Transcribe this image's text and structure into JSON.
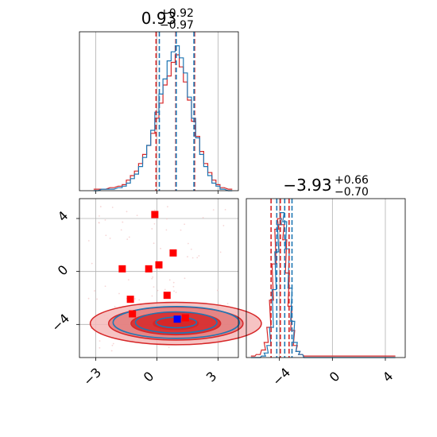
{
  "colors": {
    "red": "#d62728",
    "blue": "#1f77b4",
    "marker_red": "#ff0000",
    "marker_blue": "#0000ff",
    "grid": "#b0b0b0",
    "fill_red_light": "#f4b8b8",
    "fill_red_mid": "#e27a7a",
    "fill_red_dark": "#d62728"
  },
  "chart_data": [
    {
      "panel": "marginal-param-1",
      "type": "step-histogram",
      "title": {
        "value": "0.93",
        "plus": "+0.92",
        "minus": "−0.97"
      },
      "xlim": [
        -3.8,
        4.0
      ],
      "grid": true,
      "x_ticks": [
        -3,
        0,
        3
      ],
      "quantiles": {
        "red": [
          -0.04,
          0.93,
          1.85
        ],
        "blue": [
          0.12,
          0.95,
          1.82
        ]
      },
      "series": [
        {
          "color": "red",
          "bin_centers": [
            -3.0,
            -2.6,
            -2.2,
            -1.8,
            -1.6,
            -1.4,
            -1.2,
            -1.0,
            -0.8,
            -0.6,
            -0.4,
            -0.2,
            0.0,
            0.2,
            0.4,
            0.6,
            0.8,
            1.0,
            1.2,
            1.4,
            1.6,
            1.8,
            2.0,
            2.2,
            2.4,
            2.6,
            2.8,
            3.0,
            3.2,
            3.6
          ],
          "counts": [
            0.01,
            0.01,
            0.02,
            0.03,
            0.04,
            0.07,
            0.1,
            0.13,
            0.18,
            0.24,
            0.3,
            0.38,
            0.48,
            0.58,
            0.7,
            0.76,
            0.85,
            0.9,
            0.82,
            0.72,
            0.6,
            0.46,
            0.36,
            0.26,
            0.18,
            0.12,
            0.07,
            0.04,
            0.02,
            0.01
          ]
        },
        {
          "color": "blue",
          "bin_centers": [
            -3.0,
            -2.6,
            -2.2,
            -1.8,
            -1.6,
            -1.4,
            -1.2,
            -1.0,
            -0.8,
            -0.6,
            -0.4,
            -0.2,
            0.0,
            0.2,
            0.4,
            0.6,
            0.8,
            1.0,
            1.2,
            1.4,
            1.6,
            1.8,
            2.0,
            2.2,
            2.4,
            2.6,
            2.8,
            3.0,
            3.2,
            3.6
          ],
          "counts": [
            0.0,
            0.01,
            0.01,
            0.02,
            0.03,
            0.05,
            0.08,
            0.11,
            0.16,
            0.22,
            0.3,
            0.4,
            0.52,
            0.64,
            0.74,
            0.86,
            0.92,
            0.96,
            0.88,
            0.78,
            0.62,
            0.48,
            0.35,
            0.24,
            0.16,
            0.1,
            0.05,
            0.03,
            0.01,
            0.0
          ]
        }
      ]
    },
    {
      "panel": "joint-param-1-param-2",
      "type": "contour-scatter",
      "xlim": [
        -3.8,
        4.0
      ],
      "ylim": [
        -6.5,
        5.5
      ],
      "grid": true,
      "x_ticks": [
        -3,
        0,
        3
      ],
      "y_ticks": [
        -4,
        0,
        4
      ],
      "red_markers": [
        {
          "x": -1.7,
          "y": 0.2
        },
        {
          "x": -0.4,
          "y": 0.2
        },
        {
          "x": -0.1,
          "y": 4.3
        },
        {
          "x": 0.1,
          "y": 0.5
        },
        {
          "x": 0.8,
          "y": 1.4
        },
        {
          "x": -1.3,
          "y": -2.1
        },
        {
          "x": 0.5,
          "y": -1.8
        },
        {
          "x": -1.2,
          "y": -3.2
        },
        {
          "x": 1.4,
          "y": -3.5
        }
      ],
      "blue_markers": [
        {
          "x": 1.0,
          "y": -3.6
        }
      ],
      "contours": [
        {
          "color": "red",
          "level": 3,
          "cx": 0.93,
          "cy": -3.93,
          "rx": 4.2,
          "ry": 1.6
        },
        {
          "color": "red",
          "level": 2,
          "cx": 0.93,
          "cy": -3.93,
          "rx": 3.3,
          "ry": 1.25
        },
        {
          "color": "red",
          "level": 1,
          "cx": 0.93,
          "cy": -3.93,
          "rx": 2.2,
          "ry": 0.85
        },
        {
          "color": "red",
          "level": 0,
          "cx": 0.93,
          "cy": -3.93,
          "rx": 1.1,
          "ry": 0.45
        },
        {
          "color": "blue",
          "level": 2,
          "cx": 0.95,
          "cy": -3.85,
          "rx": 3.1,
          "ry": 1.2
        },
        {
          "color": "blue",
          "level": 1,
          "cx": 0.95,
          "cy": -3.85,
          "rx": 2.0,
          "ry": 0.8
        },
        {
          "color": "blue",
          "level": 0,
          "cx": 0.95,
          "cy": -3.85,
          "rx": 1.0,
          "ry": 0.4
        }
      ]
    },
    {
      "panel": "marginal-param-2",
      "type": "step-histogram",
      "title": {
        "value": "−3.93",
        "plus": "+0.66",
        "minus": "−0.70"
      },
      "xlim": [
        -6.5,
        5.5
      ],
      "grid": true,
      "x_ticks": [
        -4,
        0,
        4
      ],
      "quantiles": {
        "red": [
          -4.63,
          -3.93,
          -3.27
        ],
        "blue": [
          -4.2,
          -3.6,
          -3.05
        ]
      },
      "series": [
        {
          "color": "red",
          "bin_centers": [
            -6.0,
            -5.6,
            -5.2,
            -5.0,
            -4.8,
            -4.6,
            -4.4,
            -4.2,
            -4.0,
            -3.8,
            -3.6,
            -3.4,
            -3.2,
            -3.0,
            -2.8,
            -2.6,
            -2.4,
            -2.0,
            4.2,
            4.6
          ],
          "counts": [
            0.01,
            0.02,
            0.05,
            0.1,
            0.2,
            0.38,
            0.62,
            0.85,
            0.92,
            0.88,
            0.78,
            0.56,
            0.34,
            0.18,
            0.08,
            0.04,
            0.02,
            0.01,
            0.01,
            0.01
          ]
        },
        {
          "color": "blue",
          "bin_centers": [
            -6.0,
            -5.6,
            -5.2,
            -5.0,
            -4.8,
            -4.6,
            -4.4,
            -4.2,
            -4.0,
            -3.8,
            -3.6,
            -3.4,
            -3.2,
            -3.0,
            -2.8,
            -2.6,
            -2.4,
            -2.0,
            4.2,
            4.6
          ],
          "counts": [
            0.0,
            0.0,
            0.01,
            0.03,
            0.08,
            0.2,
            0.45,
            0.7,
            0.88,
            0.96,
            0.9,
            0.72,
            0.46,
            0.24,
            0.1,
            0.04,
            0.02,
            0.0,
            0.0,
            0.0
          ]
        }
      ]
    }
  ],
  "tick_labels": {
    "p1_x": [
      "−3",
      "0",
      "3"
    ],
    "p2_y": [
      "−4",
      "0",
      "4"
    ],
    "p2_x": [
      "−4",
      "0",
      "4"
    ]
  }
}
